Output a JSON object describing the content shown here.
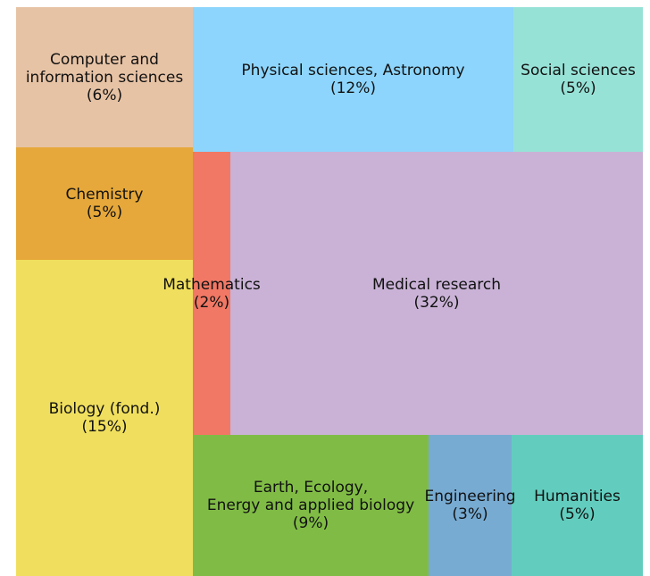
{
  "chart_data": {
    "type": "treemap",
    "categories": [
      "Computer and\ninformation sciences",
      "Physical sciences, Astronomy",
      "Social sciences",
      "Chemistry",
      "Biology (fond.)",
      "Mathematics",
      "Medical research",
      "Earth, Ecology,\nEnergy and applied biology",
      "Engineering",
      "Humanities"
    ],
    "values": [
      6,
      12,
      5,
      5,
      15,
      2,
      32,
      9,
      3,
      5
    ],
    "value_labels": [
      "(6%)",
      "(12%)",
      "(5%)",
      "(5%)",
      "(15%)",
      "(2%)",
      "(32%)",
      "(9%)",
      "(3%)",
      "(5%)"
    ],
    "colors": [
      "#e7c3a5",
      "#8dd5fc",
      "#97e2d7",
      "#e6a83a",
      "#f0df5e",
      "#f17864",
      "#c9b2d6",
      "#80bc45",
      "#77abd2",
      "#62cdbe"
    ]
  }
}
